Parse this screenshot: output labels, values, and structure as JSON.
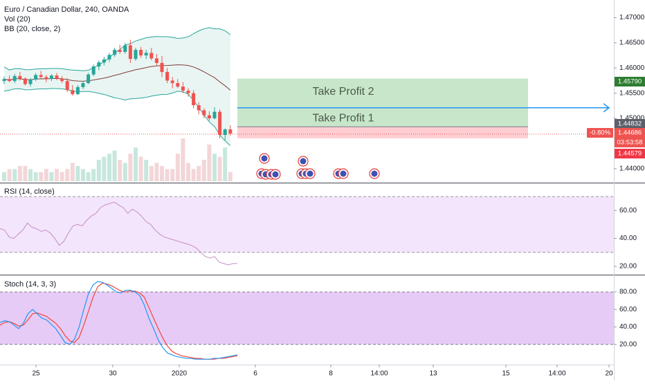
{
  "symbol": {
    "title": "Euro / Canadian Dollar, 240, OANDA",
    "volume_label": "Vol (20)",
    "bb_label": "BB (20, close, 2)"
  },
  "colors": {
    "up": "#26a69a",
    "down": "#ef5350",
    "bb_band": "#26a69a",
    "bb_fill": "#e9f5f2",
    "bb_mid": "#7e3d3d",
    "tp_zone": "#c8e6c9",
    "sl_zone": "#ffcdd2",
    "arrow": "#2196f3",
    "rsi_bg": "#f3e5fb",
    "rsi_line": "#c58ec7",
    "stoch_bg": "#e7cbf7",
    "stoch_k": "#2196f3",
    "stoch_d": "#f44336"
  },
  "trade": {
    "tp2_label": "Take Profit 2",
    "tp1_label": "Take Profit 1",
    "tp2": 1.4579,
    "tp1": 1.4521,
    "entry": 1.44832,
    "sl": 1.44579
  },
  "price_axis": {
    "ticks": [
      "1.47000",
      "1.46500",
      "1.46000",
      "1.45500",
      "1.45000",
      "1.44000"
    ],
    "tick_values": [
      1.47,
      1.465,
      1.46,
      1.455,
      1.45,
      1.44
    ],
    "badges": [
      {
        "text": "1.45790",
        "value": 1.4579,
        "color": "#2e7d32"
      },
      {
        "text": "1.44832",
        "value": 1.44832,
        "color": "#5d606b"
      },
      {
        "text": "1.44686",
        "value": 1.44686,
        "color": "#ef5350"
      },
      {
        "text": "03:53:58",
        "value": 1.4452,
        "color": "#ef5350"
      },
      {
        "text": "1.44579",
        "value": 1.4436,
        "color": "#f23645"
      }
    ],
    "change_badge": "-0.80%"
  },
  "rsi": {
    "label": "RSI (14, close)",
    "ticks": [
      "60.00",
      "40.00",
      "20.00"
    ],
    "tick_values": [
      60,
      40,
      20
    ],
    "values": [
      47,
      46,
      41,
      40,
      43,
      46,
      51,
      48,
      47,
      45,
      46,
      44,
      40,
      35,
      38,
      44,
      49,
      50,
      49,
      53,
      56,
      58,
      62,
      64,
      65,
      66,
      64,
      62,
      58,
      61,
      59,
      56,
      52,
      50,
      46,
      43,
      41,
      40,
      39,
      38,
      37,
      36,
      35,
      33,
      30,
      27,
      26,
      27,
      23,
      22,
      21,
      22,
      22
    ]
  },
  "stoch": {
    "label": "Stoch (14, 3, 3)",
    "ticks": [
      "80.00",
      "60.00",
      "40.00",
      "20.00"
    ],
    "tick_values": [
      80,
      60,
      40,
      20
    ],
    "k": [
      45,
      47,
      46,
      42,
      38,
      44,
      55,
      60,
      55,
      50,
      48,
      43,
      38,
      30,
      22,
      20,
      26,
      40,
      60,
      78,
      88,
      92,
      91,
      88,
      84,
      80,
      79,
      82,
      82,
      80,
      76,
      65,
      50,
      38,
      25,
      16,
      10,
      8,
      6,
      5,
      4,
      4,
      3,
      3,
      3,
      3,
      4,
      4,
      5,
      6,
      7,
      8
    ],
    "d": [
      42,
      45,
      46,
      44,
      41,
      42,
      48,
      55,
      56,
      54,
      52,
      48,
      44,
      38,
      30,
      24,
      22,
      28,
      42,
      58,
      74,
      86,
      90,
      89,
      87,
      84,
      81,
      80,
      81,
      81,
      79,
      74,
      62,
      50,
      38,
      27,
      18,
      12,
      9,
      7,
      6,
      5,
      4,
      4,
      3,
      3,
      3,
      4,
      4,
      5,
      6,
      7
    ]
  },
  "time_axis": {
    "labels": [
      "25",
      "30",
      "2020",
      "6",
      "8",
      "14:00",
      "13",
      "15",
      "14:00",
      "20"
    ]
  },
  "chart_data": {
    "type": "candlestick",
    "title": "Euro / Canadian Dollar, 240, OANDA",
    "ylim": [
      1.4375,
      1.4735
    ],
    "candles": [
      [
        1.4574,
        1.4583,
        1.4568,
        1.4578
      ],
      [
        1.4578,
        1.4585,
        1.4572,
        1.4574
      ],
      [
        1.4574,
        1.4588,
        1.457,
        1.4584
      ],
      [
        1.4584,
        1.4592,
        1.4575,
        1.4579
      ],
      [
        1.4579,
        1.4581,
        1.4565,
        1.4568
      ],
      [
        1.4568,
        1.458,
        1.4563,
        1.4577
      ],
      [
        1.4577,
        1.459,
        1.4574,
        1.4586
      ],
      [
        1.4586,
        1.4594,
        1.458,
        1.4582
      ],
      [
        1.4582,
        1.4586,
        1.4572,
        1.4578
      ],
      [
        1.4578,
        1.4588,
        1.4574,
        1.4585
      ],
      [
        1.4585,
        1.459,
        1.4576,
        1.4579
      ],
      [
        1.4579,
        1.4584,
        1.457,
        1.4574
      ],
      [
        1.4574,
        1.458,
        1.4552,
        1.4556
      ],
      [
        1.4556,
        1.4566,
        1.4545,
        1.4548
      ],
      [
        1.4548,
        1.4566,
        1.4546,
        1.4562
      ],
      [
        1.4562,
        1.4574,
        1.4558,
        1.457
      ],
      [
        1.457,
        1.459,
        1.4568,
        1.4587
      ],
      [
        1.4587,
        1.4607,
        1.4584,
        1.4603
      ],
      [
        1.4603,
        1.4615,
        1.4596,
        1.4611
      ],
      [
        1.4611,
        1.4622,
        1.4605,
        1.4617
      ],
      [
        1.4617,
        1.463,
        1.4612,
        1.4626
      ],
      [
        1.4626,
        1.464,
        1.4622,
        1.4636
      ],
      [
        1.4636,
        1.4646,
        1.4628,
        1.4632
      ],
      [
        1.4632,
        1.465,
        1.4628,
        1.4645
      ],
      [
        1.4645,
        1.4656,
        1.461,
        1.4618
      ],
      [
        1.4618,
        1.464,
        1.4614,
        1.4636
      ],
      [
        1.4636,
        1.4642,
        1.462,
        1.4625
      ],
      [
        1.4625,
        1.4636,
        1.4618,
        1.463
      ],
      [
        1.463,
        1.464,
        1.4615,
        1.4619
      ],
      [
        1.4619,
        1.4628,
        1.4605,
        1.461
      ],
      [
        1.461,
        1.4624,
        1.4582,
        1.4592
      ],
      [
        1.4592,
        1.46,
        1.457,
        1.4575
      ],
      [
        1.4575,
        1.4582,
        1.456,
        1.457
      ],
      [
        1.457,
        1.4578,
        1.456,
        1.4563
      ],
      [
        1.4563,
        1.4572,
        1.455,
        1.4555
      ],
      [
        1.4555,
        1.456,
        1.4543,
        1.455
      ],
      [
        1.455,
        1.4556,
        1.452,
        1.4526
      ],
      [
        1.4526,
        1.4532,
        1.4508,
        1.4516
      ],
      [
        1.4516,
        1.452,
        1.45,
        1.4506
      ],
      [
        1.4506,
        1.4514,
        1.4495,
        1.45
      ],
      [
        1.45,
        1.4522,
        1.4498,
        1.4513
      ],
      [
        1.4513,
        1.4518,
        1.446,
        1.4467
      ],
      [
        1.4467,
        1.448,
        1.4456,
        1.4478
      ],
      [
        1.4478,
        1.4486,
        1.4466,
        1.447
      ]
    ],
    "volume": [
      3,
      4,
      4,
      5,
      5,
      4,
      3,
      3,
      4,
      3,
      4,
      3,
      4,
      6,
      5,
      4,
      3,
      4,
      7,
      8,
      9,
      10,
      7,
      6,
      9,
      11,
      8,
      7,
      5,
      6,
      5,
      4,
      4,
      9,
      14,
      6,
      4,
      5,
      7,
      12,
      9,
      8,
      11,
      3
    ]
  }
}
